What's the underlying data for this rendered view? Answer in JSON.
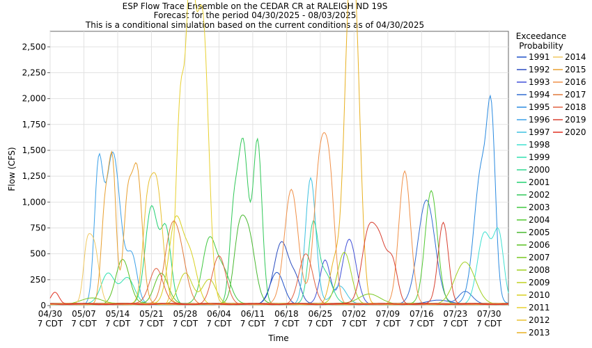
{
  "chart_data": {
    "type": "line",
    "title": [
      "ESP Flow Trace Ensemble on the CEDAR CR at RALEIGH ND 19S",
      "Forecast for the period 04/30/2025 - 08/03/2025",
      "This is a conditional simulation based on the current conditions as of 04/30/2025"
    ],
    "xlabel": "Time",
    "ylabel": "Flow (CFS)",
    "ylim": [
      0,
      2650
    ],
    "yticks": [
      0,
      250,
      500,
      750,
      1000,
      1250,
      1500,
      1750,
      2000,
      2250,
      2500
    ],
    "ytick_labels": [
      "0",
      "250",
      "500",
      "750",
      "1,000",
      "1,250",
      "1,500",
      "1,750",
      "2,000",
      "2,250",
      "2,500"
    ],
    "x_range_days": [
      0,
      95
    ],
    "xticks": [
      {
        "day": 0,
        "label": "04/30",
        "sub": "7 CDT"
      },
      {
        "day": 7,
        "label": "05/07",
        "sub": "7 CDT"
      },
      {
        "day": 14,
        "label": "05/14",
        "sub": "7 CDT"
      },
      {
        "day": 21,
        "label": "05/21",
        "sub": "7 CDT"
      },
      {
        "day": 28,
        "label": "05/28",
        "sub": "7 CDT"
      },
      {
        "day": 35,
        "label": "06/04",
        "sub": "7 CDT"
      },
      {
        "day": 42,
        "label": "06/11",
        "sub": "7 CDT"
      },
      {
        "day": 49,
        "label": "06/18",
        "sub": "7 CDT"
      },
      {
        "day": 56,
        "label": "06/25",
        "sub": "7 CDT"
      },
      {
        "day": 63,
        "label": "07/02",
        "sub": "7 CDT"
      },
      {
        "day": 70,
        "label": "07/09",
        "sub": "7 CDT"
      },
      {
        "day": 77,
        "label": "07/16",
        "sub": "7 CDT"
      },
      {
        "day": 84,
        "label": "07/23",
        "sub": "7 CDT"
      },
      {
        "day": 91,
        "label": "07/30",
        "sub": "7 CDT"
      }
    ],
    "grid": true,
    "legend_title": [
      "Exceedance",
      "Probability"
    ],
    "legend_placement": "right",
    "series": [
      {
        "name": "1991",
        "color": "#1e50c8",
        "base": 15,
        "peaks": [
          [
            47,
            300,
            2
          ],
          [
            80,
            40,
            3
          ]
        ]
      },
      {
        "name": "1992",
        "color": "#2a4cc0",
        "base": 15,
        "peaks": [
          [
            48,
            600,
            2.2
          ],
          [
            51,
            200,
            1.5
          ]
        ]
      },
      {
        "name": "1993",
        "color": "#4050d8",
        "base": 15,
        "peaks": [
          [
            62,
            620,
            2
          ],
          [
            57,
            430,
            1.5
          ]
        ]
      },
      {
        "name": "1994",
        "color": "#2f6ad0",
        "base": 15,
        "peaks": [
          [
            78,
            1000,
            2.5
          ],
          [
            86,
            120,
            2
          ]
        ]
      },
      {
        "name": "1995",
        "color": "#2a8ae0",
        "base": 15,
        "peaks": [
          [
            89.5,
            1330,
            2.2
          ],
          [
            91.5,
            1370,
            1.2
          ]
        ]
      },
      {
        "name": "1996",
        "color": "#3aa0e8",
        "base": 15,
        "peaks": [
          [
            13,
            1460,
            2.2
          ],
          [
            10,
            1200,
            1.2
          ],
          [
            17,
            450,
            1.5
          ]
        ]
      },
      {
        "name": "1997",
        "color": "#3cc0e0",
        "base": 15,
        "peaks": [
          [
            54,
            1220,
            1.5
          ],
          [
            60,
            180,
            2
          ]
        ]
      },
      {
        "name": "1998",
        "color": "#3ee0d0",
        "base": 15,
        "peaks": [
          [
            90,
            680,
            2
          ],
          [
            93,
            650,
            1.5
          ]
        ]
      },
      {
        "name": "1999",
        "color": "#30e0b0",
        "base": 15,
        "peaks": [
          [
            12,
            300,
            2
          ],
          [
            16,
            250,
            2
          ]
        ]
      },
      {
        "name": "2000",
        "color": "#30d890",
        "base": 15,
        "peaks": [
          [
            54.5,
            740,
            1.4
          ],
          [
            57,
            300,
            2
          ]
        ]
      },
      {
        "name": "2001",
        "color": "#20d070",
        "base": 15,
        "peaks": [
          [
            21,
            940,
            1.8
          ],
          [
            24,
            700,
            1.5
          ]
        ]
      },
      {
        "name": "2002",
        "color": "#30c858",
        "base": 15,
        "peaks": [
          [
            40,
            1540,
            1.5
          ],
          [
            43,
            1570,
            1.3
          ],
          [
            38,
            780,
            1.2
          ]
        ]
      },
      {
        "name": "2003",
        "color": "#40c840",
        "base": 15,
        "peaks": [
          [
            33,
            620,
            2
          ],
          [
            36,
            300,
            2
          ]
        ]
      },
      {
        "name": "2004",
        "color": "#50c830",
        "base": 15,
        "peaks": [
          [
            79,
            1100,
            1.8
          ]
        ]
      },
      {
        "name": "2005",
        "color": "#48b830",
        "base": 15,
        "peaks": [
          [
            41,
            700,
            2
          ],
          [
            39,
            500,
            1.5
          ]
        ]
      },
      {
        "name": "2006",
        "color": "#58c020",
        "base": 15,
        "peaks": [
          [
            15,
            430,
            2
          ],
          [
            23,
            300,
            2
          ]
        ]
      },
      {
        "name": "2007",
        "color": "#78c820",
        "base": 15,
        "peaks": [
          [
            9,
            60,
            3
          ],
          [
            66,
            100,
            3
          ]
        ]
      },
      {
        "name": "2008",
        "color": "#a0d020",
        "base": 15,
        "peaks": [
          [
            61,
            500,
            2
          ],
          [
            86,
            400,
            3
          ]
        ]
      },
      {
        "name": "2009",
        "color": "#c0d020",
        "base": 15,
        "peaks": [
          [
            28,
            300,
            2
          ],
          [
            33,
            240,
            2
          ]
        ]
      },
      {
        "name": "2010",
        "color": "#d8d020",
        "base": 15,
        "peaks": [
          [
            26,
            800,
            2
          ],
          [
            29,
            450,
            2
          ]
        ]
      },
      {
        "name": "2011",
        "color": "#e8d030",
        "base": 15,
        "peaks": [
          [
            30,
            2160,
            2.2
          ],
          [
            27,
            1740,
            1.3
          ],
          [
            29,
            1400,
            1
          ],
          [
            32,
            1700,
            1.5
          ]
        ]
      },
      {
        "name": "2012",
        "color": "#e8c030",
        "base": 15,
        "peaks": [
          [
            22,
            1180,
            1.8
          ],
          [
            20,
            700,
            1.3
          ]
        ]
      },
      {
        "name": "2013",
        "color": "#e8b020",
        "base": 15,
        "peaks": [
          [
            62,
            2530,
            1.6
          ],
          [
            63.5,
            1800,
            1.5
          ],
          [
            59,
            400,
            1.5
          ]
        ]
      },
      {
        "name": "2014",
        "color": "#f0c860",
        "base": 15,
        "peaks": [
          [
            9,
            600,
            1.5
          ],
          [
            7.5,
            380,
            1
          ]
        ]
      },
      {
        "name": "2015",
        "color": "#e8a030",
        "base": 15,
        "peaks": [
          [
            18,
            1300,
            1.5
          ],
          [
            11.5,
            1000,
            1.2
          ],
          [
            13,
            1200,
            1
          ],
          [
            16,
            900,
            1.2
          ]
        ]
      },
      {
        "name": "2016",
        "color": "#f09048",
        "base": 15,
        "peaks": [
          [
            50,
            1110,
            2
          ],
          [
            56,
            1370,
            1.8
          ],
          [
            58,
            1000,
            1.5
          ],
          [
            73.5,
            1280,
            1.7
          ]
        ]
      },
      {
        "name": "2017",
        "color": "#e07838",
        "base": 15,
        "peaks": [
          [
            25,
            610,
            2
          ],
          [
            27,
            400,
            2
          ]
        ]
      },
      {
        "name": "2018",
        "color": "#e06040",
        "base": 15,
        "peaks": [
          [
            22,
            350,
            2
          ],
          [
            35,
            460,
            2
          ],
          [
            53,
            480,
            2
          ]
        ]
      },
      {
        "name": "2019",
        "color": "#d84030",
        "base": 15,
        "peaks": [
          [
            66,
            690,
            2
          ],
          [
            68.5,
            500,
            1.8
          ],
          [
            81.5,
            790,
            1.5
          ],
          [
            71,
            380,
            1.5
          ]
        ]
      },
      {
        "name": "2020",
        "color": "#e03020",
        "base": 15,
        "peaks": [
          [
            1,
            120,
            1.2
          ]
        ]
      }
    ]
  }
}
